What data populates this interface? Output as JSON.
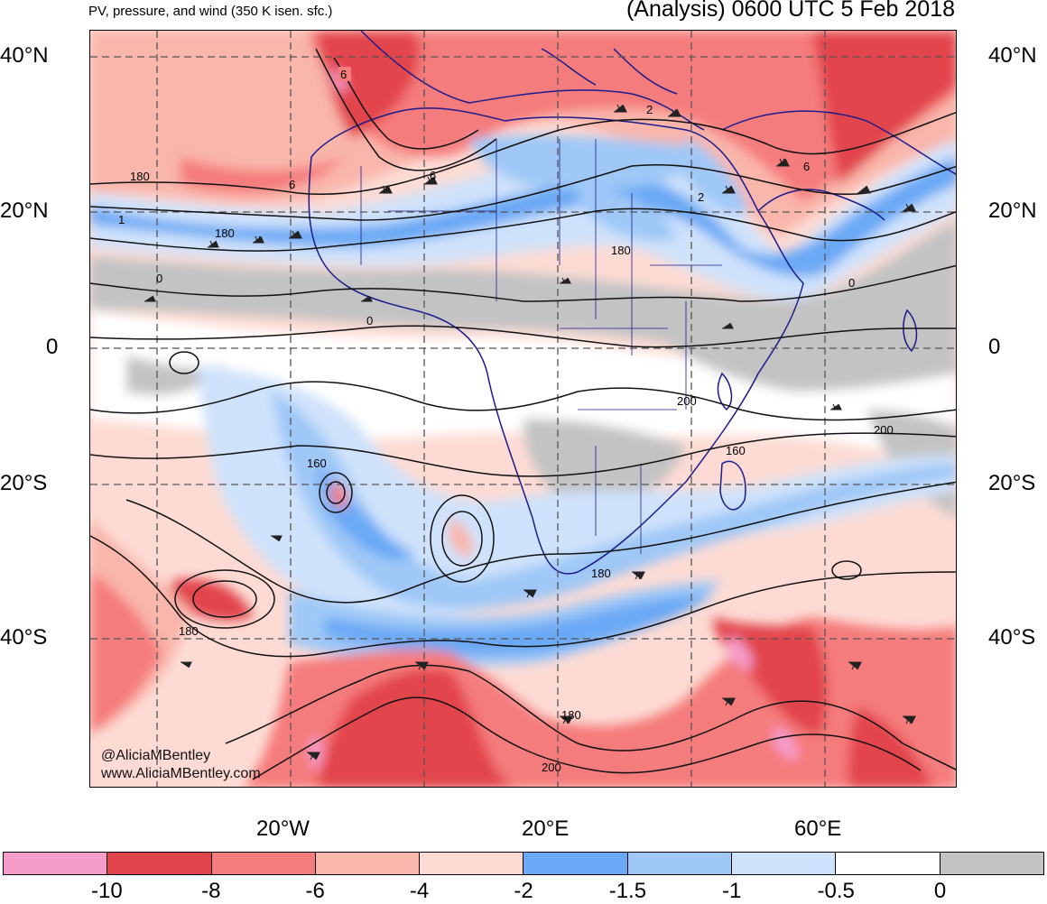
{
  "title_left": "PV, pressure, and wind (350 K isen. sfc.)",
  "title_right": "(Analysis) 0600 UTC 5 Feb 2018",
  "lat_labels": {
    "n40_left": "40°N",
    "n20_left": "20°N",
    "eq_left": "0",
    "s20_left": "20°S",
    "s40_left": "40°S",
    "n40_right": "40°N",
    "n20_right": "20°N",
    "eq_right": "0",
    "s20_right": "20°S",
    "s40_right": "40°S"
  },
  "lon_labels": {
    "w20": "20°W",
    "e20": "20°E",
    "e60": "60°E"
  },
  "colorbar": {
    "colors": [
      "#f59ccb",
      "#e2444c",
      "#f57c7c",
      "#f9b6ab",
      "#fddbd4",
      "#6aa9f5",
      "#9fc8f7",
      "#cfe2fb",
      "#ffffff",
      "#c3c3c3"
    ],
    "labels": [
      "-10",
      "-8",
      "-6",
      "-4",
      "-2",
      "-1.5",
      "-1",
      "-0.5",
      "0"
    ]
  },
  "contour_labels": {
    "c1": "6",
    "c2": "180",
    "c3": "6",
    "c4": "6",
    "c5": "2",
    "c6": "2",
    "c7": "1",
    "c8": "180",
    "c9": "0",
    "c10": "0",
    "c11": "180",
    "c12": "0",
    "c13": "200",
    "c14": "200",
    "c15": "160",
    "c16": "160",
    "c17": "180",
    "c18": "180",
    "c19": "180",
    "c20": "200",
    "c21": "6"
  },
  "credits": {
    "twitter": "@AliciaMBentley",
    "website": "www.AliciaMBentley.com"
  },
  "colors": {
    "land_outline": "#1a1a8c",
    "grid": "#555555",
    "contour": "#111111"
  }
}
